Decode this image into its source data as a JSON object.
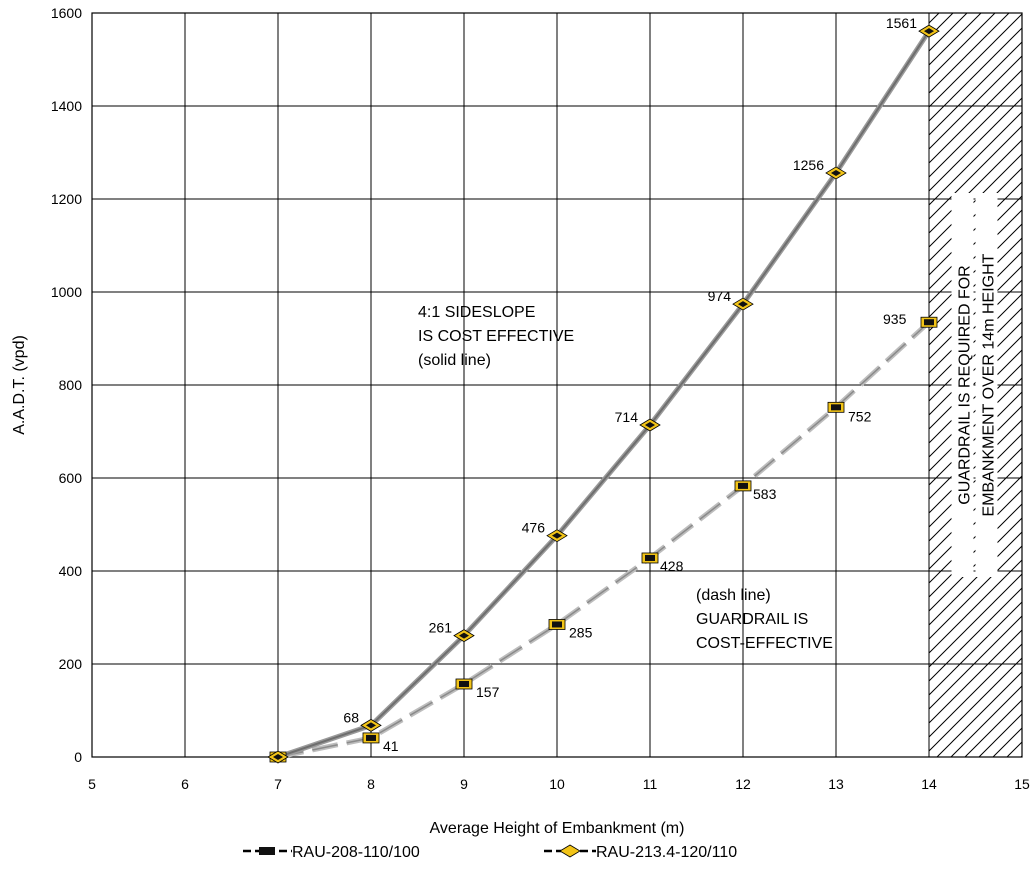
{
  "chart_data": {
    "type": "line",
    "xlabel": "Average Height of Embankment (m)",
    "ylabel": "A.A.D.T. (vpd)",
    "xlim": [
      5,
      15
    ],
    "ylim": [
      0,
      1600
    ],
    "xticks": [
      "5",
      "6",
      "7",
      "8",
      "9",
      "10",
      "11",
      "12",
      "13",
      "14",
      "15"
    ],
    "yticks": [
      "0",
      "200",
      "400",
      "600",
      "800",
      "1000",
      "1200",
      "1400",
      "1600"
    ],
    "grid": true,
    "legend_position": "bottom",
    "series": [
      {
        "name": "RAU-208-110/100",
        "style": "dashed",
        "marker": "square",
        "x": [
          7,
          8,
          9,
          10,
          11,
          12,
          13,
          14
        ],
        "y": [
          0,
          41,
          157,
          285,
          428,
          583,
          752,
          935
        ],
        "labels": [
          "",
          "41",
          "157",
          "285",
          "428",
          "583",
          "752",
          "935"
        ]
      },
      {
        "name": "RAU-213.4-120/110",
        "style": "solid",
        "marker": "diamond",
        "x": [
          7,
          8,
          9,
          10,
          11,
          12,
          13,
          14
        ],
        "y": [
          0,
          68,
          261,
          476,
          714,
          974,
          1256,
          1561
        ],
        "labels": [
          "",
          "68",
          "261",
          "476",
          "714",
          "974",
          "1256",
          "1561"
        ]
      }
    ],
    "annotations": {
      "solid_region": [
        "4:1 SIDESLOPE",
        "IS COST EFFECTIVE",
        "(solid line)"
      ],
      "dash_region": [
        "(dash line)",
        "GUARDRAIL IS",
        "COST-EFFECTIVE"
      ],
      "hatched_region": [
        "GUARDRAIL IS REQUIRED FOR",
        "EMBANKMENT OVER 14m HEIGHT"
      ],
      "hatched_from_x": 14
    },
    "colors": {
      "line": "#6e6e6e",
      "dash_line": "#bdbdbd",
      "marker_fill": "#f2c418",
      "marker_center": "#111111",
      "grid": "#000000"
    }
  }
}
